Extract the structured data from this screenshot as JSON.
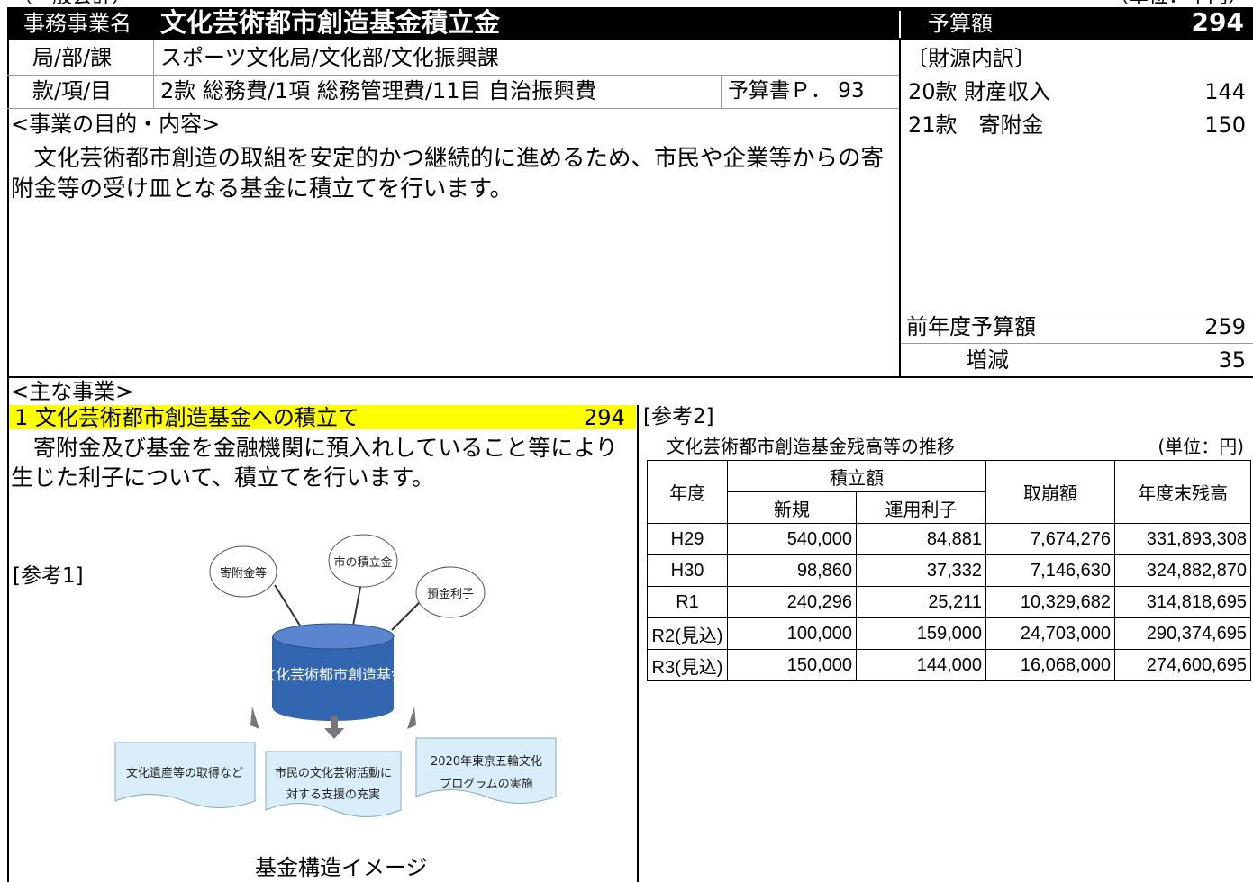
{
  "header": {
    "account": "（一般会計）",
    "unit": "（単位：千円）",
    "name_label": "事務事業名",
    "name": "文化芸術都市創造基金積立金",
    "budget_label": "予算額",
    "budget": "294"
  },
  "info": {
    "org_label": "局/部/課",
    "org": "スポーツ文化局/文化部/文化振興課",
    "item_label": "款/項/目",
    "item": "2款 総務費/1項 総務管理費/11目 自治振興費",
    "page": "予算書Ｐ． 93"
  },
  "purpose": {
    "heading": "<事業の目的・内容>",
    "text": "　文化芸術都市創造の取組を安定的かつ継続的に進めるため、市民や企業等からの寄附金等の受け皿となる基金に積立てを行います。"
  },
  "funding": {
    "heading": "〔財源内訳〕",
    "sources": [
      {
        "label": "20款 財産収入",
        "amount": "144"
      },
      {
        "label": "21款　寄附金",
        "amount": "150"
      }
    ],
    "previous_label": "前年度予算額",
    "previous": "259",
    "change_label": "増減",
    "change": "35"
  },
  "main": {
    "heading": "<主な事業>",
    "item": "1  文化芸術都市創造基金への積立て",
    "amount": "294",
    "text": "　寄附金及び基金を金融機関に預入れしていること等により生じた利子について、積立てを行います。"
  },
  "ref1": {
    "label": "[参考1]",
    "caption": "基金構造イメージ",
    "inputs": [
      "寄附金等",
      "市の積立金",
      "預金利子"
    ],
    "fund": "文化芸術都市創造基金",
    "outputs": [
      [
        "文化遺産等の取得など"
      ],
      [
        "市民の文化芸術活動に",
        "対する支援の充実"
      ],
      [
        "2020年東京五輪文化",
        "プログラムの実施"
      ]
    ]
  },
  "ref2": {
    "label": "[参考2]",
    "title": "文化芸術都市創造基金残高等の推移",
    "unit": "(単位：円)",
    "headers": {
      "year": "年度",
      "reserve": "積立額",
      "new": "新規",
      "interest": "運用利子",
      "withdrawal": "取崩額",
      "balance": "年度末残高"
    },
    "rows": [
      [
        "H29",
        "540,000",
        "84,881",
        "7,674,276",
        "331,893,308"
      ],
      [
        "H30",
        "98,860",
        "37,332",
        "7,146,630",
        "324,882,870"
      ],
      [
        "R1",
        "240,296",
        "25,211",
        "10,329,682",
        "314,818,695"
      ],
      [
        "R2(見込)",
        "100,000",
        "159,000",
        "24,703,000",
        "290,374,695"
      ],
      [
        "R3(見込)",
        "150,000",
        "144,000",
        "16,068,000",
        "274,600,695"
      ]
    ]
  }
}
